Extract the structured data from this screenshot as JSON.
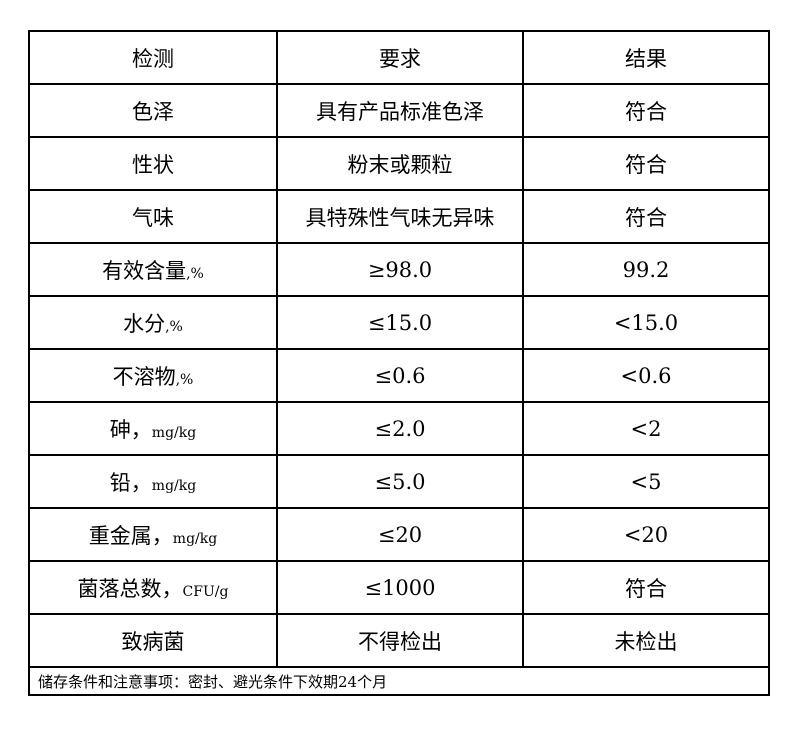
{
  "header": [
    "检测",
    "要求",
    "结果"
  ],
  "rows": [
    {
      "item": "色泽",
      "unit": "",
      "requirement": "具有产品标准色泽",
      "result": "符合"
    },
    {
      "item": "性状",
      "unit": "",
      "requirement": "粉末或颗粒",
      "result": "符合"
    },
    {
      "item": "气味",
      "unit": "",
      "requirement": "具特殊性气味无异味",
      "result": "符合"
    },
    {
      "item": "有效含量",
      "unit": ",%",
      "requirement": "≥98.0",
      "result": "99.2"
    },
    {
      "item": "水分",
      "unit": ",%",
      "requirement": "≤15.0",
      "result": "<15.0"
    },
    {
      "item": "不溶物",
      "unit": ",%",
      "requirement": "≤0.6",
      "result": "<0.6"
    },
    {
      "item": "砷，",
      "unit": "mg/kg",
      "requirement": "≤2.0",
      "result": "<2"
    },
    {
      "item": "铅，",
      "unit": "mg/kg",
      "requirement": "≤5.0",
      "result": "<5"
    },
    {
      "item": "重金属，",
      "unit": "mg/kg",
      "requirement": "≤20",
      "result": "<20"
    },
    {
      "item": "菌落总数，",
      "unit": "CFU/g",
      "requirement": "≤1000",
      "result": "符合"
    },
    {
      "item": "致病菌",
      "unit": "",
      "requirement": "不得检出",
      "result": "未检出"
    }
  ],
  "footer": "储存条件和注意事项：密封、避光条件下效期24个月"
}
